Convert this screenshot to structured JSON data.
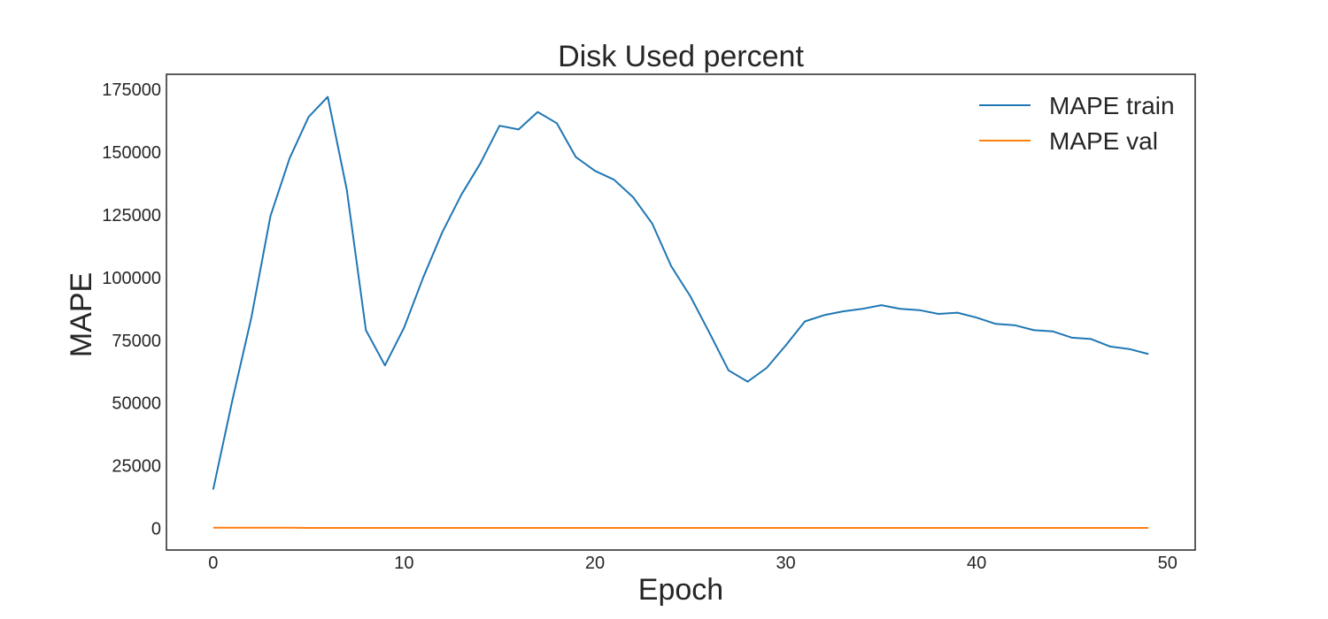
{
  "chart_data": {
    "type": "line",
    "title": "Disk Used percent",
    "xlabel": "Epoch",
    "ylabel": "MAPE",
    "xlim": [
      -2.45,
      51.45
    ],
    "ylim": [
      -8600,
      181000
    ],
    "xticks": [
      0,
      10,
      20,
      30,
      40,
      50
    ],
    "yticks": [
      0,
      25000,
      50000,
      75000,
      100000,
      125000,
      150000,
      175000
    ],
    "grid": false,
    "legend_position": "top-right",
    "x": [
      0,
      1,
      2,
      3,
      4,
      5,
      6,
      7,
      8,
      9,
      10,
      11,
      12,
      13,
      14,
      15,
      16,
      17,
      18,
      19,
      20,
      21,
      22,
      23,
      24,
      25,
      26,
      27,
      28,
      29,
      30,
      31,
      32,
      33,
      34,
      35,
      36,
      37,
      38,
      39,
      40,
      41,
      42,
      43,
      44,
      45,
      46,
      47,
      48,
      49
    ],
    "series": [
      {
        "name": "MAPE train",
        "color": "#1f77b4",
        "values": [
          15500,
          51000,
          84000,
          124500,
          147500,
          164000,
          172000,
          135000,
          79000,
          65000,
          80000,
          100000,
          118000,
          133000,
          145500,
          160500,
          159000,
          166000,
          161500,
          148000,
          142500,
          139000,
          132000,
          121500,
          104500,
          92500,
          78000,
          63000,
          58500,
          64000,
          73000,
          82500,
          85000,
          86500,
          87500,
          89000,
          87500,
          87000,
          85500,
          86000,
          84000,
          81500,
          81000,
          79000,
          78500,
          76000,
          75500,
          72500,
          71500,
          69500
        ]
      },
      {
        "name": "MAPE val",
        "color": "#ff7f0e",
        "values": [
          300,
          300,
          300,
          300,
          300,
          200,
          200,
          200,
          200,
          200,
          200,
          200,
          200,
          200,
          200,
          200,
          200,
          200,
          200,
          200,
          200,
          200,
          200,
          200,
          200,
          200,
          200,
          200,
          200,
          200,
          200,
          200,
          200,
          200,
          200,
          200,
          200,
          200,
          200,
          200,
          200,
          200,
          200,
          200,
          200,
          200,
          200,
          200,
          200,
          200
        ]
      }
    ]
  }
}
